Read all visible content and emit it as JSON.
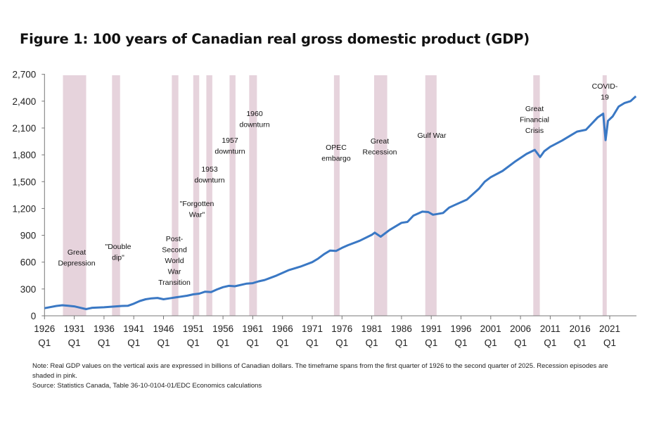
{
  "chart_data": {
    "type": "line",
    "title": "Figure 1: 100 years of Canadian real gross domestic product (GDP)",
    "xlabel": "",
    "ylabel": "",
    "ylim": [
      0,
      2700
    ],
    "xlim": [
      1926,
      2025.5
    ],
    "y_ticks": [
      "0",
      "300",
      "600",
      "900",
      "1,200",
      "1,500",
      "1,800",
      "2,100",
      "2,400",
      "2,700"
    ],
    "y_tick_values": [
      0,
      300,
      600,
      900,
      1200,
      1500,
      1800,
      2100,
      2400,
      2700
    ],
    "x_ticks": [
      {
        "year": 1926,
        "label": "1926",
        "q": "Q1"
      },
      {
        "year": 1931,
        "label": "1931",
        "q": "Q1"
      },
      {
        "year": 1936,
        "label": "1936",
        "q": "Q1"
      },
      {
        "year": 1941,
        "label": "1941",
        "q": "Q1"
      },
      {
        "year": 1946,
        "label": "1946",
        "q": "Q1"
      },
      {
        "year": 1951,
        "label": "1951",
        "q": "Q1"
      },
      {
        "year": 1956,
        "label": "1956",
        "q": "Q1"
      },
      {
        "year": 1961,
        "label": "1961",
        "q": "Q1"
      },
      {
        "year": 1966,
        "label": "1966",
        "q": "Q1"
      },
      {
        "year": 1971,
        "label": "1971",
        "q": "Q1"
      },
      {
        "year": 1976,
        "label": "1976",
        "q": "Q1"
      },
      {
        "year": 1981,
        "label": "1981",
        "q": "Q1"
      },
      {
        "year": 1986,
        "label": "1986",
        "q": "Q1"
      },
      {
        "year": 1991,
        "label": "1991",
        "q": "Q1"
      },
      {
        "year": 1996,
        "label": "1996",
        "q": "Q1"
      },
      {
        "year": 2001,
        "label": "2001",
        "q": "Q1"
      },
      {
        "year": 2006,
        "label": "2006",
        "q": "Q1"
      },
      {
        "year": 2011,
        "label": "2011",
        "q": "Q1"
      },
      {
        "year": 2016,
        "label": "2016",
        "q": "Q1"
      },
      {
        "year": 2021,
        "label": "2021",
        "q": "Q1"
      }
    ],
    "grid": false,
    "series_color": "#3a78c4",
    "recession_color": "#e6d3dc",
    "series": [
      {
        "x": [
          1926,
          1928,
          1929,
          1930,
          1931,
          1932,
          1933,
          1934,
          1936,
          1937,
          1939,
          1940,
          1941,
          1942,
          1943,
          1944,
          1945,
          1946,
          1947,
          1948,
          1950,
          1951,
          1952,
          1953,
          1954,
          1955,
          1956,
          1957,
          1958,
          1960,
          1961,
          1962,
          1963,
          1965,
          1967,
          1969,
          1971,
          1972,
          1973,
          1974,
          1975,
          1976,
          1977,
          1979,
          1981,
          1981.5,
          1982.5,
          1984,
          1986,
          1987,
          1988,
          1989.5,
          1990.5,
          1991.3,
          1993,
          1994,
          1995,
          1997,
          1999,
          2000,
          2001,
          2003,
          2005,
          2007,
          2008.4,
          2009.3,
          2010,
          2011,
          2013,
          2014.5,
          2015.5,
          2017,
          2019,
          2019.9,
          2020.3,
          2020.7,
          2021.5,
          2022.5,
          2023.5,
          2024.5,
          2025.4
        ],
        "y": [
          85,
          110,
          118,
          112,
          105,
          90,
          75,
          90,
          95,
          100,
          110,
          112,
          135,
          165,
          185,
          195,
          200,
          185,
          195,
          205,
          225,
          240,
          248,
          270,
          265,
          295,
          320,
          335,
          330,
          360,
          365,
          385,
          400,
          450,
          510,
          550,
          600,
          640,
          690,
          730,
          725,
          760,
          790,
          840,
          905,
          930,
          885,
          960,
          1040,
          1050,
          1120,
          1165,
          1160,
          1130,
          1150,
          1210,
          1240,
          1300,
          1420,
          1500,
          1550,
          1620,
          1720,
          1810,
          1855,
          1775,
          1840,
          1890,
          1960,
          2020,
          2060,
          2080,
          2220,
          2260,
          1965,
          2180,
          2230,
          2340,
          2380,
          2400,
          2455
        ]
      }
    ],
    "recessions": [
      {
        "name": "Great Depression",
        "start": 1929.1,
        "end": 1933.0,
        "label_lines": [
          "Great",
          "Depression"
        ]
      },
      {
        "name": "\"Double dip\"",
        "start": 1937.35,
        "end": 1938.7,
        "label_lines": [
          "\"Double",
          "dip\""
        ]
      },
      {
        "name": "Post-Second World War Transition",
        "start": 1947.4,
        "end": 1948.5,
        "label_lines": [
          "Post-",
          "Second",
          "World",
          "War",
          "Transition"
        ]
      },
      {
        "name": "\"Forgotten War\"",
        "start": 1951.0,
        "end": 1952.0,
        "label_lines": [
          "\"Forgotten",
          "War\""
        ]
      },
      {
        "name": "1953 downturn",
        "start": 1953.2,
        "end": 1954.2,
        "label_lines": [
          "1953",
          "downturn"
        ]
      },
      {
        "name": "1957 downturn",
        "start": 1957.1,
        "end": 1958.1,
        "label_lines": [
          "1957",
          "downturn"
        ]
      },
      {
        "name": "1960 downturn",
        "start": 1960.4,
        "end": 1961.7,
        "label_lines": [
          "1960",
          "downturn"
        ]
      },
      {
        "name": "OPEC embargo",
        "start": 1974.65,
        "end": 1975.6,
        "label_lines": [
          "OPEC",
          "embargo"
        ]
      },
      {
        "name": "Great Recession",
        "start": 1981.4,
        "end": 1983.6,
        "label_lines": [
          "Great",
          "Recession"
        ]
      },
      {
        "name": "Gulf War",
        "start": 1990.0,
        "end": 1991.9,
        "label_lines": [
          "Gulf War"
        ]
      },
      {
        "name": "Great Financial Crisis",
        "start": 2008.15,
        "end": 2009.25,
        "label_lines": [
          "Great",
          "Financial",
          "Crisis"
        ]
      },
      {
        "name": "COVID-19",
        "start": 2019.8,
        "end": 2020.5,
        "label_lines": [
          "COVID-",
          "19"
        ]
      }
    ]
  },
  "notes": {
    "note": "Note: Real GDP values on the vertical axis are expressed in billions of Canadian dollars. The timeframe spans from the first quarter of 1926 to the second quarter of 2025. Recession episodes are shaded in pink.",
    "source": "Source: Statistics Canada, Table 36-10-0104-01/EDC Economics calculations"
  }
}
